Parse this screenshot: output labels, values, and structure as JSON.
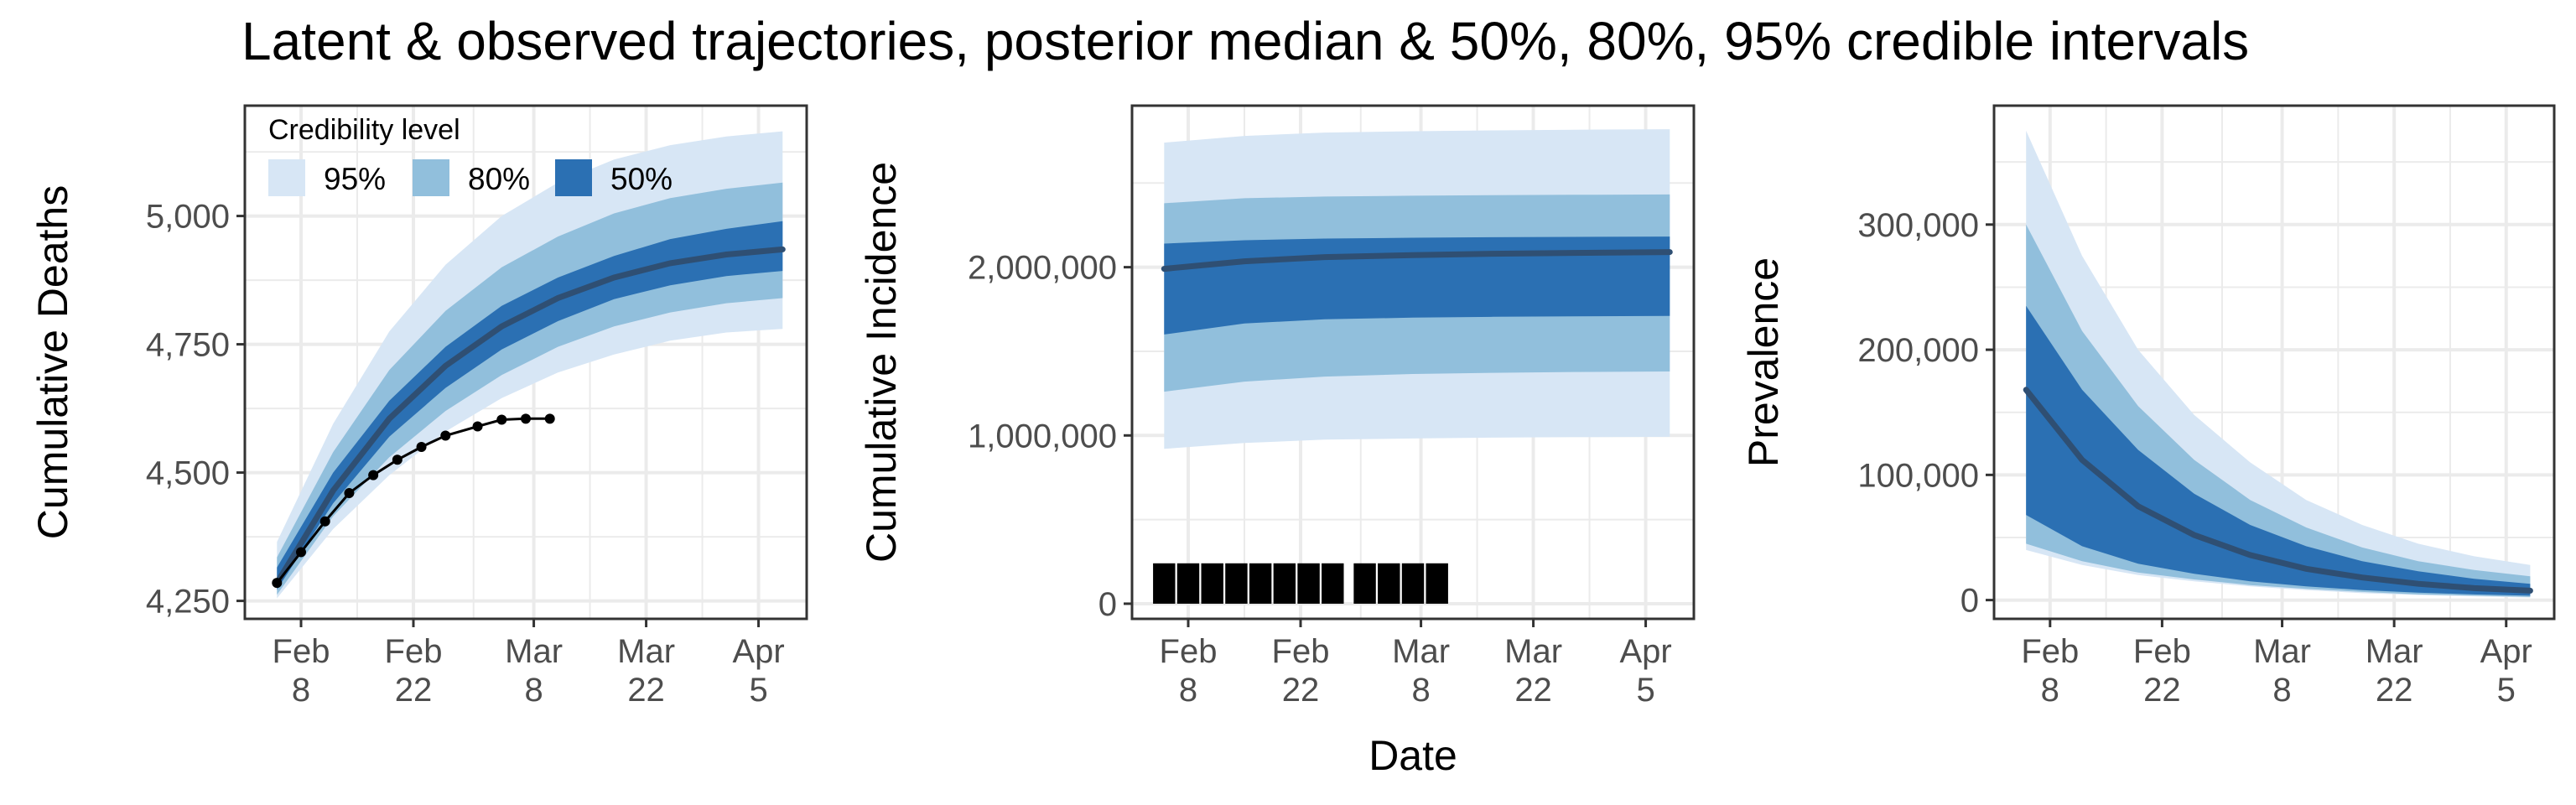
{
  "title": "Latent & observed trajectories, posterior median & 50%, 80%, 95% credible intervals",
  "xlabel_shared": "Date",
  "colors": {
    "band95": "#d7e6f5",
    "band80": "#91bfdc",
    "band50": "#2b70b3",
    "median": "#2f4f73",
    "observed": "#000000",
    "grid": "#ebebeb",
    "axis_text": "#4d4d4d"
  },
  "legend": {
    "title": "Credibility level",
    "items": [
      {
        "label": "95%",
        "color_key": "band95"
      },
      {
        "label": "80%",
        "color_key": "band80"
      },
      {
        "label": "50%",
        "color_key": "band50"
      }
    ],
    "placement": "top-left inside first panel"
  },
  "chart_data": [
    {
      "type": "area",
      "ylabel": "Cumulative Deaths",
      "xlabel": "",
      "x_ticks": [
        "Feb 8",
        "Feb 22",
        "Mar 8",
        "Mar 22",
        "Apr 5"
      ],
      "y_ticks": [
        "4,250",
        "4,500",
        "4,750",
        "5,000"
      ],
      "y_tick_values": [
        4250,
        4500,
        4750,
        5000
      ],
      "ylim": [
        4215,
        5215
      ],
      "grid": true,
      "x": [
        "Feb 5",
        "Feb 12",
        "Feb 19",
        "Feb 26",
        "Mar 4",
        "Mar 11",
        "Mar 18",
        "Mar 25",
        "Apr 1",
        "Apr 8"
      ],
      "series": [
        {
          "band": "95%",
          "lower": [
            4255,
            4390,
            4495,
            4580,
            4645,
            4695,
            4730,
            4757,
            4773,
            4780
          ],
          "upper": [
            4365,
            4595,
            4775,
            4905,
            5000,
            5065,
            5110,
            5138,
            5155,
            5165
          ]
        },
        {
          "band": "80%",
          "lower": [
            4262,
            4415,
            4530,
            4620,
            4690,
            4745,
            4785,
            4812,
            4830,
            4840
          ],
          "upper": [
            4335,
            4540,
            4700,
            4815,
            4900,
            4960,
            5005,
            5035,
            5053,
            5065
          ]
        },
        {
          "band": "50%",
          "lower": [
            4272,
            4440,
            4570,
            4665,
            4740,
            4795,
            4838,
            4865,
            4883,
            4893
          ],
          "upper": [
            4315,
            4500,
            4640,
            4745,
            4825,
            4880,
            4922,
            4955,
            4975,
            4990
          ]
        },
        {
          "name_key": "median",
          "values": [
            4285,
            4465,
            4605,
            4708,
            4785,
            4840,
            4880,
            4908,
            4925,
            4935
          ]
        }
      ],
      "observed": {
        "x": [
          "Feb 5",
          "Feb 8",
          "Feb 11",
          "Feb 14",
          "Feb 17",
          "Feb 20",
          "Feb 23",
          "Feb 26",
          "Mar 1",
          "Mar 4",
          "Mar 7",
          "Mar 10"
        ],
        "y": [
          4285,
          4345,
          4405,
          4460,
          4495,
          4525,
          4550,
          4572,
          4590,
          4603,
          4605,
          4605
        ]
      }
    },
    {
      "type": "area",
      "ylabel": "Cumulative Incidence",
      "xlabel": "Date",
      "x_ticks": [
        "Feb 8",
        "Feb 22",
        "Mar 8",
        "Mar 22",
        "Apr 5"
      ],
      "y_ticks": [
        "0",
        "1,000,000",
        "2,000,000"
      ],
      "y_tick_values": [
        0,
        1000000,
        2000000
      ],
      "ylim": [
        -90000,
        2960000
      ],
      "grid": true,
      "x": [
        "Feb 5",
        "Feb 15",
        "Feb 25",
        "Mar 7",
        "Mar 17",
        "Mar 27",
        "Apr 8"
      ],
      "series": [
        {
          "band": "95%",
          "lower": [
            920000,
            955000,
            975000,
            982000,
            987000,
            990000,
            992000
          ],
          "upper": [
            2740000,
            2780000,
            2800000,
            2808000,
            2813000,
            2817000,
            2820000
          ]
        },
        {
          "band": "80%",
          "lower": [
            1260000,
            1320000,
            1350000,
            1365000,
            1372000,
            1377000,
            1380000
          ],
          "upper": [
            2380000,
            2410000,
            2420000,
            2425000,
            2428000,
            2430000,
            2432000
          ]
        },
        {
          "band": "50%",
          "lower": [
            1600000,
            1665000,
            1690000,
            1700000,
            1705000,
            1708000,
            1710000
          ],
          "upper": [
            2140000,
            2160000,
            2170000,
            2175000,
            2178000,
            2180000,
            2182000
          ]
        },
        {
          "name_key": "median",
          "values": [
            1990000,
            2035000,
            2060000,
            2072000,
            2080000,
            2085000,
            2090000
          ]
        }
      ],
      "observed_bars": {
        "x": [
          "Feb 5",
          "Feb 8",
          "Feb 11",
          "Feb 14",
          "Feb 17",
          "Feb 20",
          "Feb 23",
          "Feb 26",
          "Mar 1",
          "Mar 4",
          "Mar 7",
          "Mar 10"
        ],
        "y": [
          240000,
          240000,
          240000,
          240000,
          240000,
          240000,
          240000,
          240000,
          240000,
          240000,
          240000,
          240000
        ]
      }
    },
    {
      "type": "area",
      "ylabel": "Prevalence",
      "xlabel": "",
      "x_ticks": [
        "Feb 8",
        "Feb 22",
        "Mar 8",
        "Mar 22",
        "Apr 5"
      ],
      "y_ticks": [
        "0",
        "100,000",
        "200,000",
        "300,000"
      ],
      "y_tick_values": [
        0,
        100000,
        200000,
        300000
      ],
      "ylim": [
        -15000,
        395000
      ],
      "grid": true,
      "x": [
        "Feb 5",
        "Feb 12",
        "Feb 19",
        "Feb 26",
        "Mar 4",
        "Mar 11",
        "Mar 18",
        "Mar 25",
        "Apr 1",
        "Apr 8"
      ],
      "series": [
        {
          "band": "95%",
          "lower": [
            40000,
            28000,
            20000,
            15000,
            11000,
            8000,
            5500,
            4000,
            3000,
            2000
          ],
          "upper": [
            375000,
            275000,
            200000,
            148000,
            110000,
            80000,
            60000,
            45000,
            35000,
            28000
          ]
        },
        {
          "band": "80%",
          "lower": [
            45000,
            31000,
            22000,
            16500,
            12000,
            9000,
            6500,
            4500,
            3500,
            2500
          ],
          "upper": [
            300000,
            215000,
            155000,
            112000,
            80000,
            58000,
            42000,
            31000,
            24000,
            19000
          ]
        },
        {
          "band": "50%",
          "lower": [
            68000,
            43000,
            29000,
            21000,
            15000,
            11000,
            8000,
            6000,
            4500,
            3500
          ],
          "upper": [
            235000,
            168000,
            120000,
            85000,
            60000,
            43000,
            31000,
            23000,
            17000,
            13000
          ]
        },
        {
          "name_key": "median",
          "values": [
            168000,
            112000,
            75000,
            52000,
            36000,
            25000,
            18000,
            13000,
            9500,
            7500
          ]
        }
      ]
    }
  ]
}
